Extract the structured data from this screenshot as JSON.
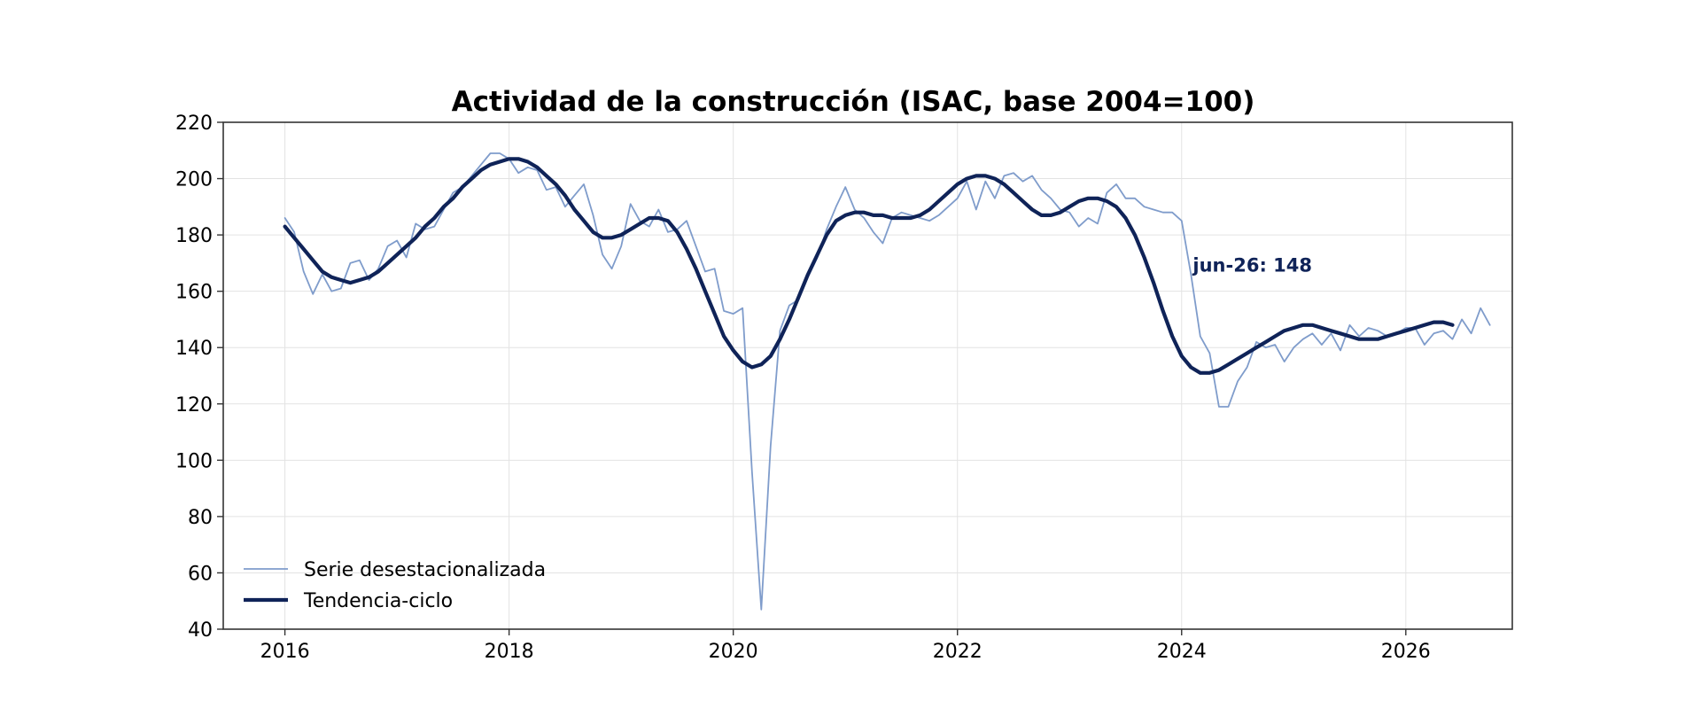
{
  "chart_data": {
    "type": "line",
    "title": "Actividad de la construcción (ISAC, base 2004=100)",
    "xlabel": "",
    "ylabel": "",
    "xlim": [
      2015.45,
      2026.95
    ],
    "ylim": [
      40,
      220
    ],
    "x_ticks": [
      2016,
      2018,
      2020,
      2022,
      2024,
      2026
    ],
    "x_tick_labels": [
      "2016",
      "2018",
      "2020",
      "2022",
      "2024",
      "2026"
    ],
    "y_ticks": [
      40,
      60,
      80,
      100,
      120,
      140,
      160,
      180,
      200,
      220
    ],
    "y_tick_labels": [
      "40",
      "60",
      "80",
      "100",
      "120",
      "140",
      "160",
      "180",
      "200",
      "220"
    ],
    "grid": true,
    "legend_position": "lower-left",
    "x_start": "2016-01",
    "x_step": "monthly",
    "series": [
      {
        "name": "Serie desestacionalizada",
        "color": "#7f9ccb",
        "values": [
          186,
          181,
          167,
          159,
          166,
          160,
          161,
          170,
          171,
          164,
          168,
          176,
          178,
          172,
          184,
          182,
          183,
          189,
          195,
          197,
          201,
          205,
          209,
          209,
          207,
          202,
          204,
          203,
          196,
          197,
          190,
          194,
          198,
          187,
          173,
          168,
          176,
          191,
          185,
          183,
          189,
          181,
          182,
          185,
          176,
          167,
          168,
          153,
          152,
          154,
          96,
          47,
          105,
          146,
          155,
          157,
          165,
          172,
          182,
          190,
          197,
          189,
          186,
          181,
          177,
          186,
          188,
          187,
          186,
          185,
          187,
          190,
          193,
          199,
          189,
          199,
          193,
          201,
          202,
          199,
          201,
          196,
          193,
          189,
          188,
          183,
          186,
          184,
          195,
          198,
          193,
          193,
          190,
          189,
          188,
          188,
          185,
          166,
          144,
          138,
          119,
          119,
          128,
          133,
          142,
          140,
          141,
          135,
          140,
          143,
          145,
          141,
          145,
          139,
          148,
          144,
          147,
          146,
          144,
          145,
          147,
          147,
          141,
          145,
          146,
          143,
          150,
          145,
          154,
          148
        ]
      },
      {
        "name": "Tendencia-ciclo",
        "color": "#0f2358",
        "values": [
          183,
          179,
          175,
          171,
          167,
          165,
          164,
          163,
          164,
          165,
          167,
          170,
          173,
          176,
          179,
          183,
          186,
          190,
          193,
          197,
          200,
          203,
          205,
          206,
          207,
          207,
          206,
          204,
          201,
          198,
          194,
          189,
          185,
          181,
          179,
          179,
          180,
          182,
          184,
          186,
          186,
          185,
          181,
          175,
          168,
          160,
          152,
          144,
          139,
          135,
          133,
          134,
          137,
          143,
          150,
          158,
          166,
          173,
          180,
          185,
          187,
          188,
          188,
          187,
          187,
          186,
          186,
          186,
          187,
          189,
          192,
          195,
          198,
          200,
          201,
          201,
          200,
          198,
          195,
          192,
          189,
          187,
          187,
          188,
          190,
          192,
          193,
          193,
          192,
          190,
          186,
          180,
          172,
          163,
          153,
          144,
          137,
          133,
          131,
          131,
          132,
          134,
          136,
          138,
          140,
          142,
          144,
          146,
          147,
          148,
          148,
          147,
          146,
          145,
          144,
          143,
          143,
          143,
          144,
          145,
          146,
          147,
          148,
          149,
          149,
          148
        ]
      }
    ],
    "annotations": [
      {
        "text": "jun-26: 148",
        "x": 2024.1,
        "y": 167,
        "color": "#0f2358"
      }
    ]
  }
}
